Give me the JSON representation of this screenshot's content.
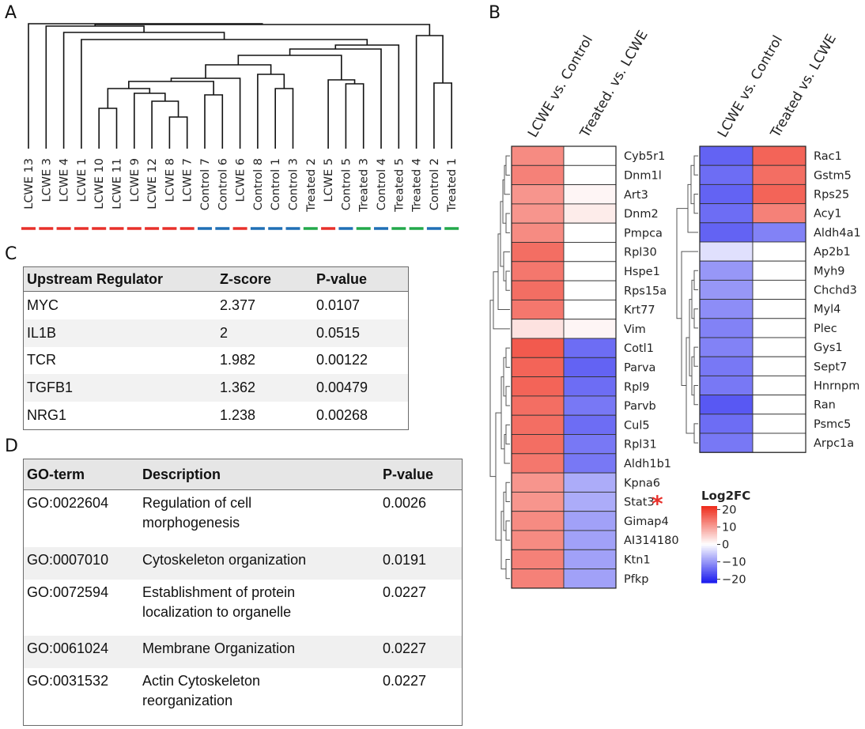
{
  "panels": {
    "a": "A",
    "b": "B",
    "c": "C",
    "d": "D"
  },
  "chart_data": [
    {
      "type": "dendrogram",
      "panel": "A",
      "leaves": [
        "LCWE 13",
        "LCWE 3",
        "LCWE 4",
        "LCWE 1",
        "LCWE 10",
        "LCWE 11",
        "LCWE 9",
        "LCWE 12",
        "LCWE 8",
        "LCWE 7",
        "Control 7",
        "Control 6",
        "LCWE 6",
        "Control 8",
        "Control 1",
        "Control 3",
        "Treated 2",
        "LCWE 5",
        "Control 5",
        "Treated 3",
        "Control 4",
        "Treated 5",
        "Treated 4",
        "Control 2",
        "Treated 1"
      ],
      "leaf_groups": [
        "LCWE",
        "LCWE",
        "LCWE",
        "LCWE",
        "LCWE",
        "LCWE",
        "LCWE",
        "LCWE",
        "LCWE",
        "LCWE",
        "Control",
        "Control",
        "LCWE",
        "Control",
        "Control",
        "Control",
        "Treated",
        "LCWE",
        "Control",
        "Treated",
        "Control",
        "Treated",
        "Treated",
        "Control",
        "Treated"
      ],
      "group_colors": {
        "LCWE": "#e8302a",
        "Control": "#1f6fb5",
        "Treated": "#22a84a"
      }
    },
    {
      "type": "heatmap",
      "panel": "B-left",
      "columns": [
        "LCWE vs. Control",
        "Treated. vs. LCWE"
      ],
      "rows": [
        "Cyb5r1",
        "Dnm1l",
        "Art3",
        "Dnm2",
        "Pmpca",
        "Rpl30",
        "Hspe1",
        "Rps15a",
        "Krt77",
        "Vim",
        "Cotl1",
        "Parva",
        "Rpl9",
        "Parvb",
        "Cul5",
        "Rpl31",
        "Aldh1b1",
        "Kpna6",
        "Stat3",
        "Gimap4",
        "AI314180",
        "Ktn1",
        "Pfkp"
      ],
      "values": [
        [
          12,
          0
        ],
        [
          13,
          0
        ],
        [
          11,
          1
        ],
        [
          11,
          2
        ],
        [
          12,
          0
        ],
        [
          15,
          0
        ],
        [
          14,
          0
        ],
        [
          15,
          0
        ],
        [
          14,
          0
        ],
        [
          3,
          1
        ],
        [
          17,
          -14
        ],
        [
          16,
          -15
        ],
        [
          16,
          -14
        ],
        [
          15,
          -13
        ],
        [
          15,
          -14
        ],
        [
          15,
          -13
        ],
        [
          14,
          -13
        ],
        [
          11,
          -8
        ],
        [
          11,
          -8
        ],
        [
          12,
          -9
        ],
        [
          12,
          -9
        ],
        [
          13,
          -9
        ],
        [
          13,
          -9
        ]
      ],
      "annotation": {
        "row": "Stat3",
        "mark": "*"
      }
    },
    {
      "type": "heatmap",
      "panel": "B-right",
      "columns": [
        "LCWE vs. Control",
        "Treated vs. LCWE"
      ],
      "rows": [
        "Rac1",
        "Gstm5",
        "Rps25",
        "Acy1",
        "Aldh4a1",
        "Ap2b1",
        "Myh9",
        "Chchd3",
        "Myl4",
        "Plec",
        "Gys1",
        "Sept7",
        "Hnrnpm",
        "Ran",
        "Psmc5",
        "Arpc1a"
      ],
      "values": [
        [
          -15,
          16
        ],
        [
          -14,
          15
        ],
        [
          -15,
          16
        ],
        [
          -14,
          13
        ],
        [
          -15,
          -12
        ],
        [
          -3,
          0
        ],
        [
          -10,
          0
        ],
        [
          -10,
          0
        ],
        [
          -11,
          0
        ],
        [
          -12,
          0
        ],
        [
          -12,
          0
        ],
        [
          -13,
          0
        ],
        [
          -13,
          0
        ],
        [
          -16,
          0
        ],
        [
          -14,
          0
        ],
        [
          -13,
          0
        ]
      ]
    },
    {
      "type": "colorbar",
      "title": "Log2FC",
      "ticks": [
        20,
        10,
        0,
        -10,
        -20
      ],
      "tick_labels": [
        "20",
        "10",
        "0",
        "−10",
        "−20"
      ],
      "range": [
        -22,
        22
      ],
      "colors": {
        "high": "#ee2a1a",
        "mid": "#ffffff",
        "low": "#1a1aee"
      }
    }
  ],
  "table_c": {
    "headers": [
      "Upstream Regulator",
      "Z-score",
      "P-value"
    ],
    "rows": [
      [
        "MYC",
        "2.377",
        "0.0107"
      ],
      [
        "IL1B",
        "2",
        "0.0515"
      ],
      [
        "TCR",
        "1.982",
        "0.00122"
      ],
      [
        "TGFB1",
        "1.362",
        "0.00479"
      ],
      [
        "NRG1",
        "1.238",
        "0.00268"
      ]
    ]
  },
  "table_d": {
    "headers": [
      "GO-term",
      "Description",
      "P-value"
    ],
    "rows": [
      {
        "term": "GO:0022604",
        "desc1": "Regulation of cell",
        "desc2": "morphogenesis",
        "p": "0.0026"
      },
      {
        "term": "GO:0007010",
        "desc1": "Cytoskeleton organization",
        "desc2": "",
        "p": "0.0191"
      },
      {
        "term": "GO:0072594",
        "desc1": "Establishment of protein",
        "desc2": "localization to organelle",
        "p": "0.0227"
      },
      {
        "term": "GO:0061024",
        "desc1": "Membrane Organization",
        "desc2": "",
        "p": "0.0227"
      },
      {
        "term": "GO:0031532",
        "desc1": "Actin Cytoskeleton",
        "desc2": "reorganization",
        "p": "0.0227"
      }
    ]
  }
}
